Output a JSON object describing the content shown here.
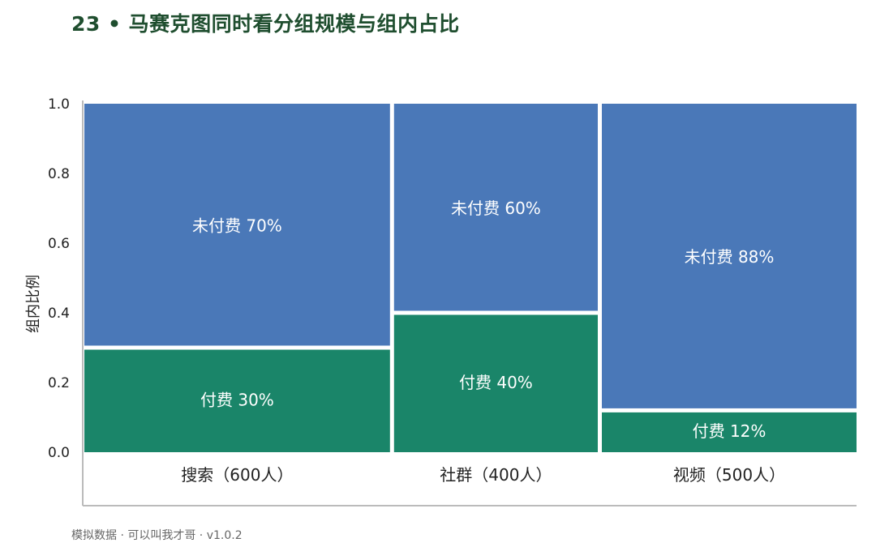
{
  "title": "23 • 马赛克图同时看分组规模与组内占比",
  "footer": "模拟数据 · 可以叫我才哥 · v1.0.2",
  "chart_data": {
    "type": "mosaic",
    "ylabel": "组内比例",
    "ylim": [
      0,
      1
    ],
    "yticks": [
      "0.0",
      "0.2",
      "0.4",
      "0.6",
      "0.8",
      "1.0"
    ],
    "categories": [
      {
        "label": "搜索（600人）",
        "size": 600,
        "paid": 0.3,
        "unpaid": 0.7,
        "paid_label": "付费 30%",
        "unpaid_label": "未付费 70%"
      },
      {
        "label": "社群（400人）",
        "size": 400,
        "paid": 0.4,
        "unpaid": 0.6,
        "paid_label": "付费 40%",
        "unpaid_label": "未付费 60%"
      },
      {
        "label": "视频（500人）",
        "size": 500,
        "paid": 0.12,
        "unpaid": 0.88,
        "paid_label": "付费 12%",
        "unpaid_label": "未付费 88%"
      }
    ],
    "colors": {
      "paid": "#1a8569",
      "unpaid": "#4a78b8",
      "axis": "#bbbbbb"
    }
  }
}
